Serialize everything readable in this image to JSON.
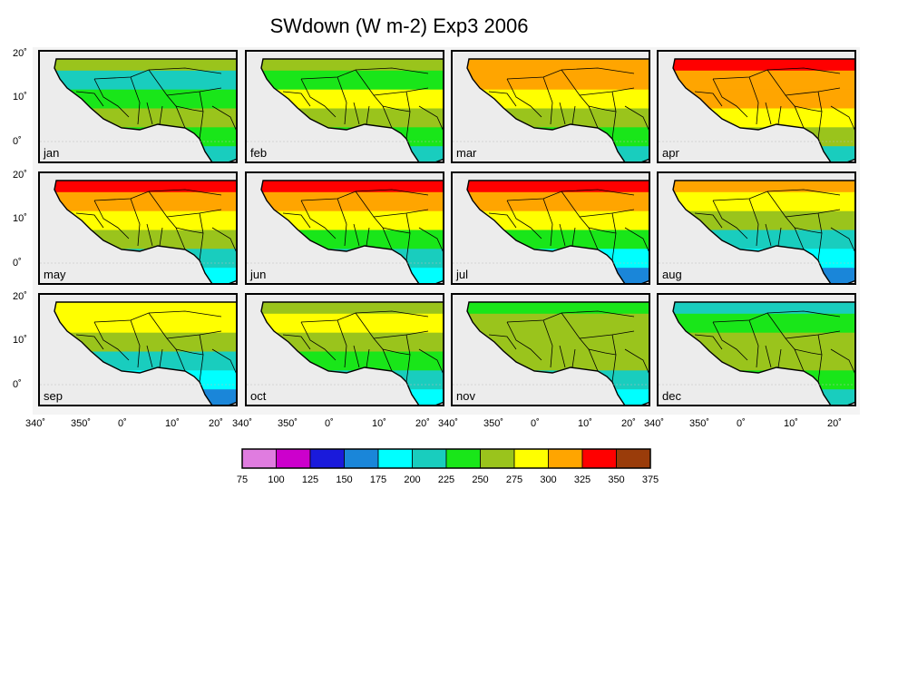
{
  "title": "SWdown (W m-2) Exp3 2006",
  "months": [
    "jan",
    "feb",
    "mar",
    "apr",
    "may",
    "jun",
    "jul",
    "aug",
    "sep",
    "oct",
    "nov",
    "dec"
  ],
  "lat_ticks": [
    "20˚",
    "10˚",
    "0˚"
  ],
  "lon_ticks": [
    "340˚",
    "350˚",
    "0˚",
    "10˚",
    "20˚"
  ],
  "colorbar": {
    "labels": [
      "75",
      "100",
      "125",
      "150",
      "175",
      "200",
      "225",
      "250",
      "275",
      "300",
      "325",
      "350",
      "375"
    ],
    "colors": [
      "#e07ce0",
      "#cc00cc",
      "#1a1adb",
      "#1a86d9",
      "#00ffff",
      "#19cdbe",
      "#19e619",
      "#9ac41c",
      "#ffff00",
      "#ffa500",
      "#ff0000",
      "#9a3c0a"
    ]
  },
  "panel_colors": {
    "jan": [
      "#9ac41c",
      "#19cdbe",
      "#19e619",
      "#9ac41c",
      "#19e619",
      "#19cdbe"
    ],
    "feb": [
      "#9ac41c",
      "#19e619",
      "#ffff00",
      "#9ac41c",
      "#19e619",
      "#19cdbe"
    ],
    "mar": [
      "#ffa500",
      "#ffa500",
      "#ffff00",
      "#9ac41c",
      "#19e619",
      "#19cdbe"
    ],
    "apr": [
      "#ff0000",
      "#ffa500",
      "#ffa500",
      "#ffff00",
      "#9ac41c",
      "#19cdbe"
    ],
    "may": [
      "#ff0000",
      "#ffa500",
      "#ffff00",
      "#9ac41c",
      "#19cdbe",
      "#00ffff"
    ],
    "jun": [
      "#ff0000",
      "#ffa500",
      "#ffff00",
      "#19e619",
      "#19cdbe",
      "#00ffff"
    ],
    "jul": [
      "#ff0000",
      "#ffa500",
      "#ffff00",
      "#19e619",
      "#00ffff",
      "#1a86d9"
    ],
    "aug": [
      "#ffa500",
      "#ffff00",
      "#9ac41c",
      "#19cdbe",
      "#00ffff",
      "#1a86d9"
    ],
    "sep": [
      "#ffff00",
      "#ffff00",
      "#9ac41c",
      "#19cdbe",
      "#00ffff",
      "#1a86d9"
    ],
    "oct": [
      "#9ac41c",
      "#ffff00",
      "#9ac41c",
      "#19e619",
      "#19cdbe",
      "#00ffff"
    ],
    "nov": [
      "#19e619",
      "#9ac41c",
      "#9ac41c",
      "#9ac41c",
      "#19cdbe",
      "#00ffff"
    ],
    "dec": [
      "#19cdbe",
      "#19e619",
      "#9ac41c",
      "#9ac41c",
      "#19e619",
      "#19cdbe"
    ]
  }
}
